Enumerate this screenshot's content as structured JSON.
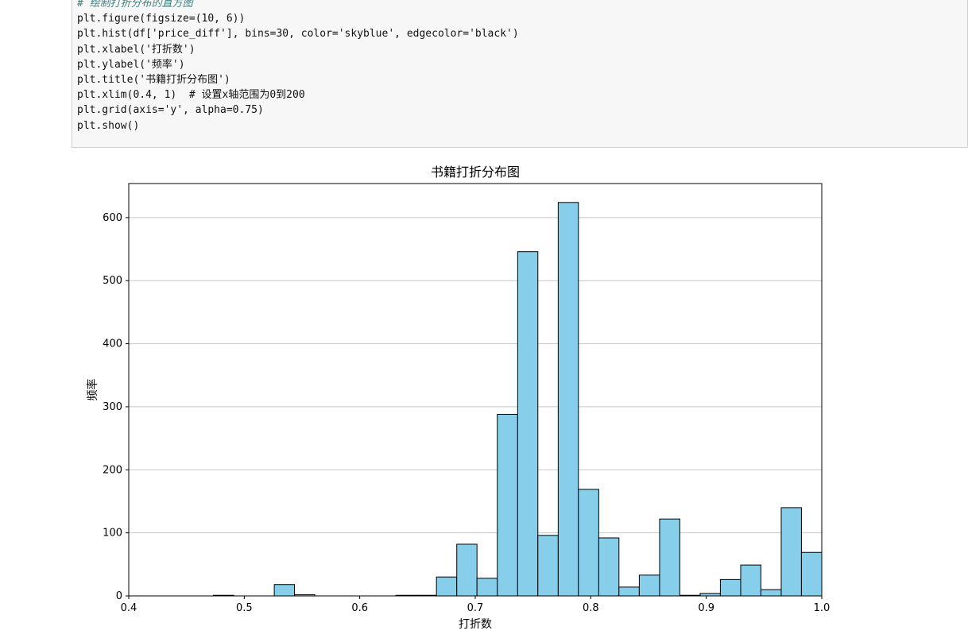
{
  "code": {
    "lines": [
      "# 绘制打折分布的直方图",
      "plt.figure(figsize=(10, 6))",
      "plt.hist(df['price_diff'], bins=30, color='skyblue', edgecolor='black')",
      "plt.xlabel('打折数')",
      "plt.ylabel('频率')",
      "plt.title('书籍打折分布图')",
      "plt.xlim(0.4, 1)  # 设置x轴范围为0到200",
      "plt.grid(axis='y', alpha=0.75)",
      "plt.show()"
    ]
  },
  "chart_data": {
    "type": "histogram",
    "title": "书籍打折分布图",
    "x_label": "打折数",
    "y_label": "频率",
    "bins": [
      0.4733,
      0.4909,
      0.5084,
      0.526,
      0.5435,
      0.5611,
      0.5786,
      0.5962,
      0.6138,
      0.6313,
      0.6489,
      0.6664,
      0.684,
      0.7015,
      0.7191,
      0.7367,
      0.7542,
      0.7718,
      0.7893,
      0.8069,
      0.8244,
      0.842,
      0.8596,
      0.8771,
      0.8947,
      0.9122,
      0.9298,
      0.9473,
      0.9649,
      0.9824,
      1.0
    ],
    "counts": [
      1,
      0,
      0,
      18,
      2,
      0,
      0,
      0,
      0,
      1,
      1,
      30,
      82,
      28,
      288,
      546,
      96,
      624,
      169,
      92,
      14,
      33,
      122,
      1,
      4,
      26,
      49,
      10,
      140,
      69
    ],
    "color": "#87ceeb",
    "edgecolor": "#000000",
    "xlim": [
      0.4,
      1
    ],
    "xticks": [
      0.4,
      0.5,
      0.6,
      0.7,
      0.8,
      0.9,
      {
        "value": 1,
        "label": "1.0"
      }
    ],
    "ylim": [
      0,
      654
    ],
    "yticks": [
      0,
      100,
      200,
      300,
      400,
      500,
      600
    ],
    "grid": "y"
  }
}
